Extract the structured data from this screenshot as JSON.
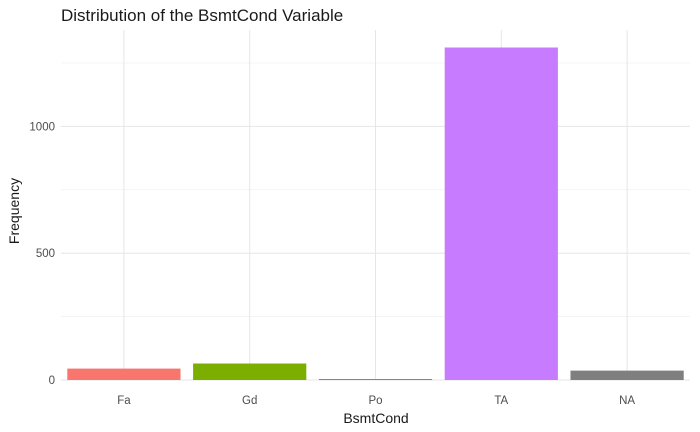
{
  "chart_data": {
    "type": "bar",
    "title": "Distribution of the BsmtCond Variable",
    "xlabel": "BsmtCond",
    "ylabel": "Frequency",
    "categories": [
      "Fa",
      "Gd",
      "Po",
      "TA",
      "NA"
    ],
    "values": [
      45,
      65,
      2,
      1311,
      37
    ],
    "colors": [
      "#F8766D",
      "#7CAE00",
      "#00BFC4",
      "#C77CFF",
      "#7F7F7F"
    ],
    "ylim": [
      0,
      1380
    ],
    "yticks": [
      0,
      500,
      1000
    ],
    "grid": true,
    "legend": "none"
  }
}
